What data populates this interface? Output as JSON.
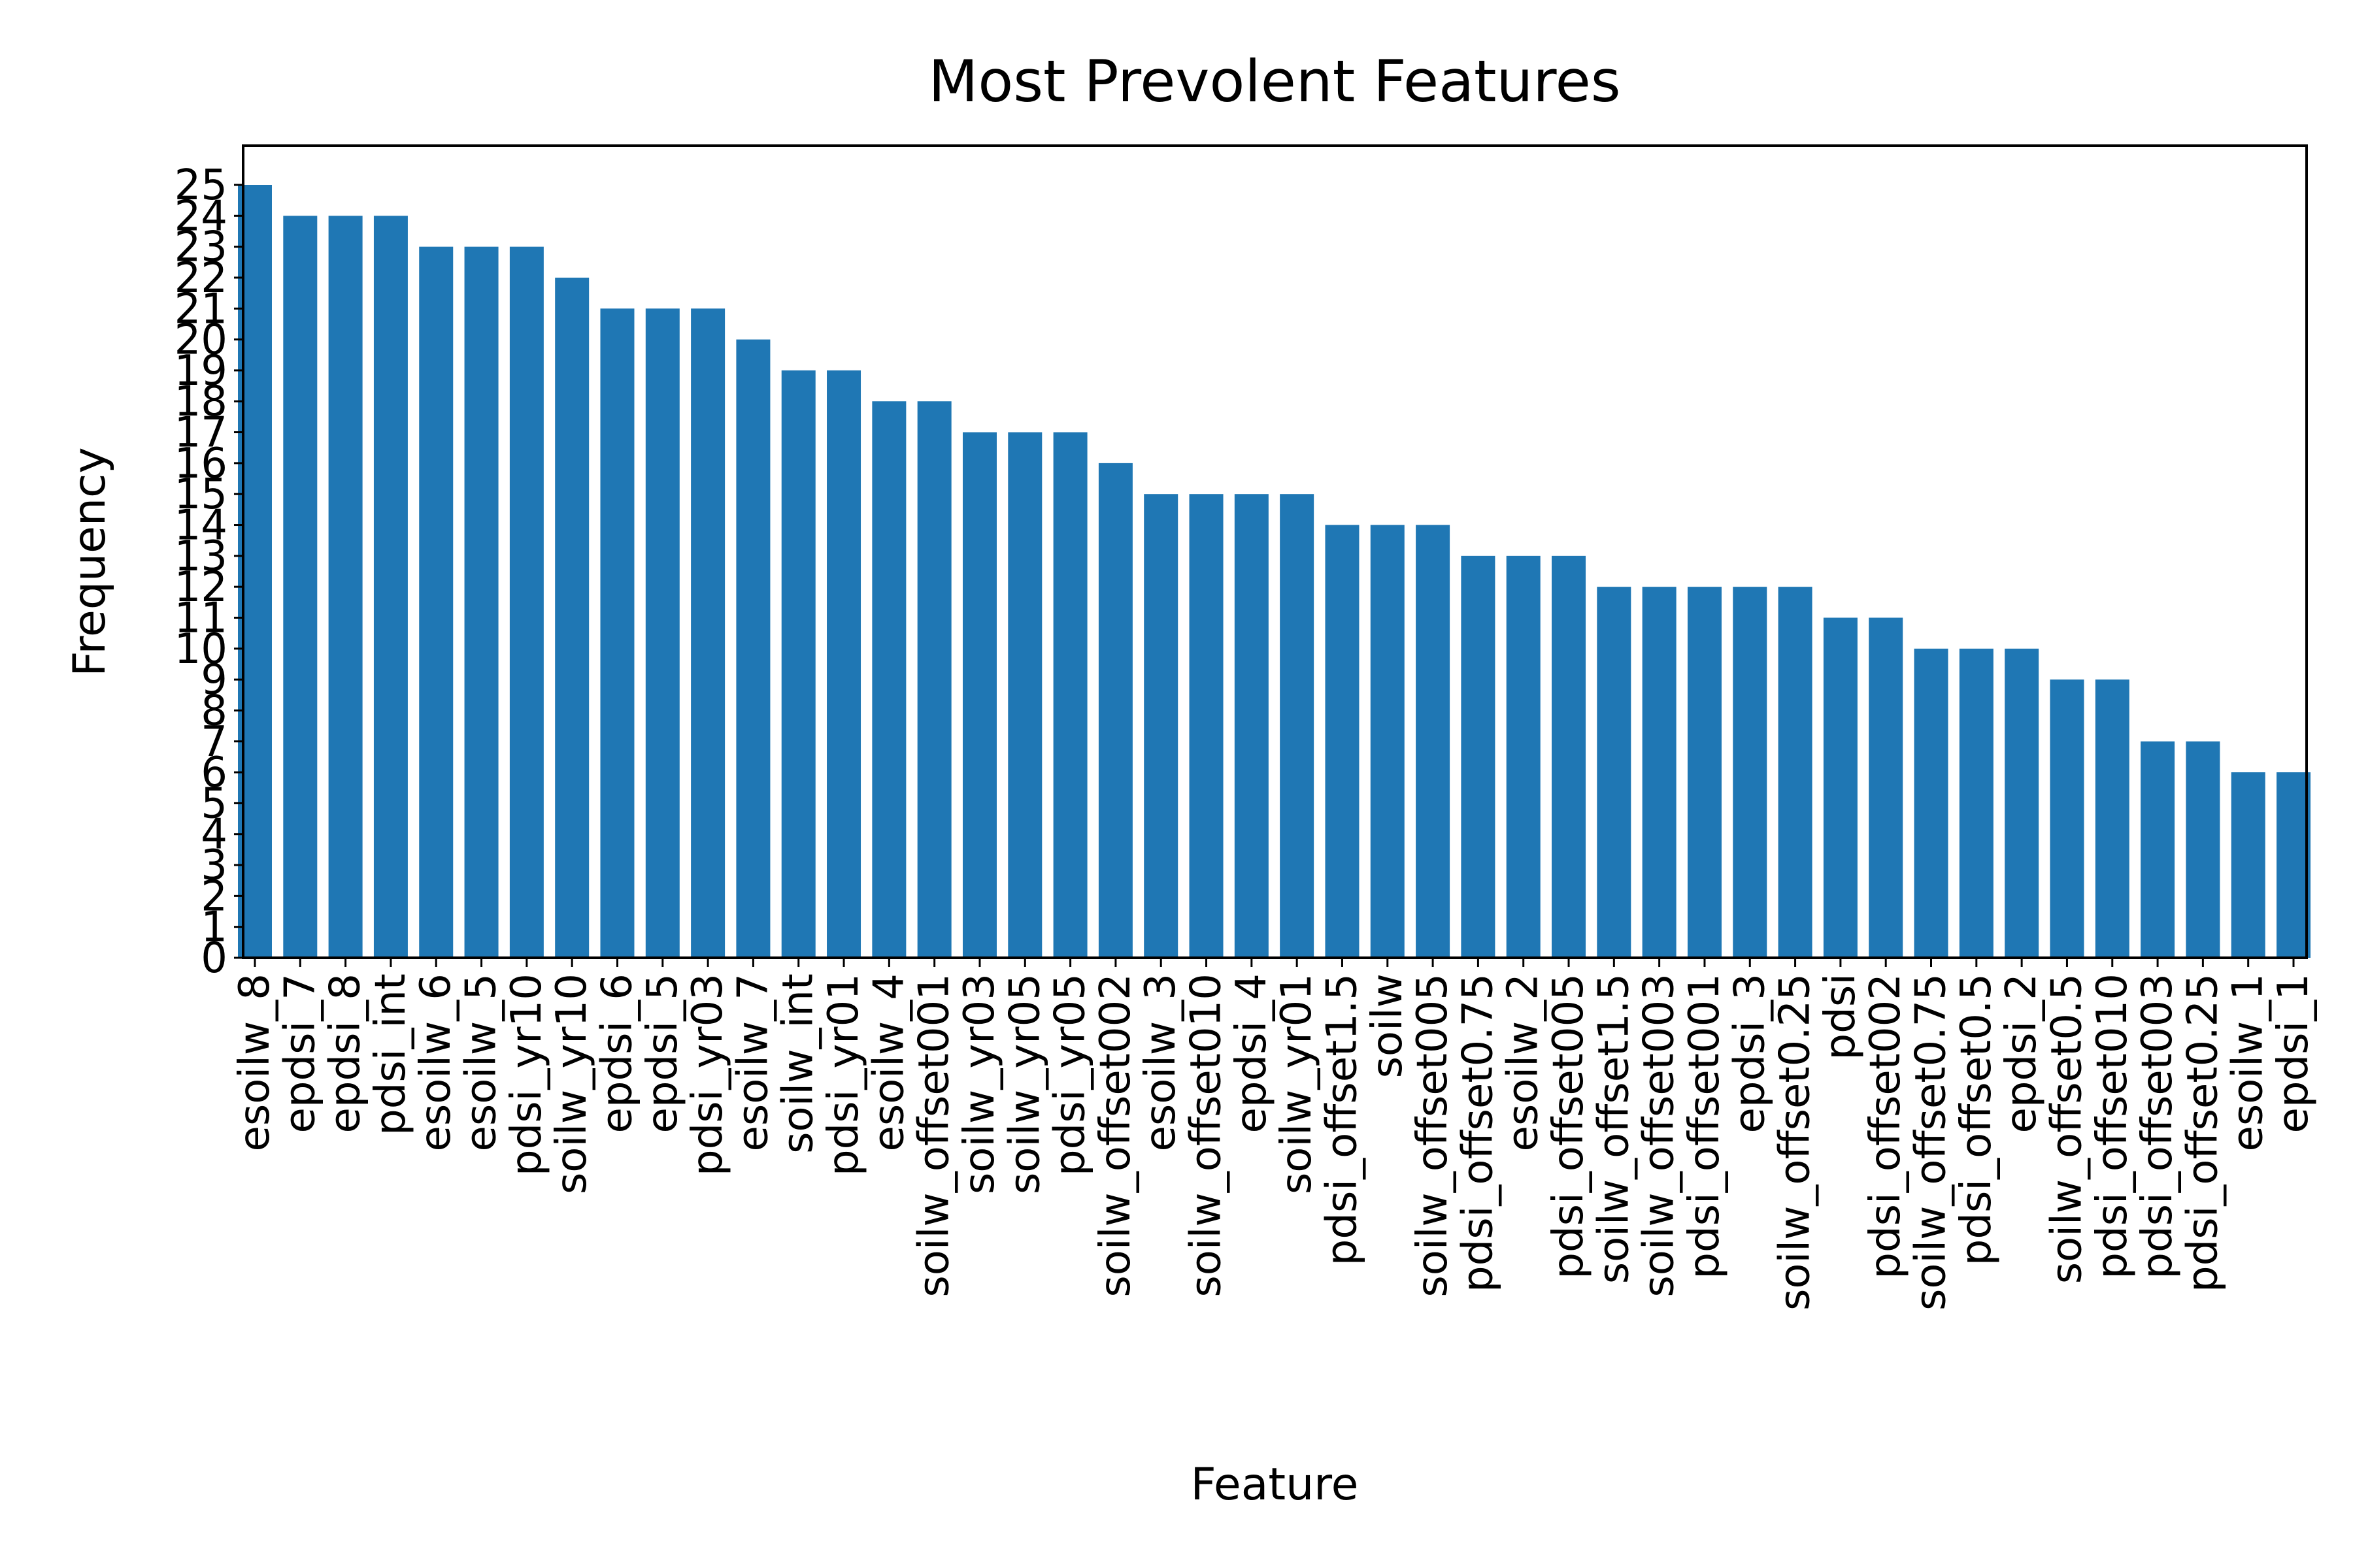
{
  "chart_data": {
    "type": "bar",
    "title": "Most Prevolent Features",
    "xlabel": "Feature",
    "ylabel": "Frequency",
    "ylim": [
      0,
      25
    ],
    "yticks": [
      0,
      1,
      2,
      3,
      4,
      5,
      6,
      7,
      8,
      9,
      10,
      11,
      12,
      13,
      14,
      15,
      16,
      17,
      18,
      19,
      20,
      21,
      22,
      23,
      24,
      25
    ],
    "grid": false,
    "bar_color": "#1f77b4",
    "categories": [
      "esoilw_8",
      "epdsi_7",
      "epdsi_8",
      "pdsi_int",
      "esoilw_6",
      "esoilw_5",
      "pdsi_yr10",
      "soilw_yr10",
      "epdsi_6",
      "epdsi_5",
      "pdsi_yr03",
      "esoilw_7",
      "soilw_int",
      "pdsi_yr01",
      "esoilw_4",
      "soilw_offset001",
      "soilw_yr03",
      "soilw_yr05",
      "pdsi_yr05",
      "soilw_offset002",
      "esoilw_3",
      "soilw_offset010",
      "epdsi_4",
      "soilw_yr01",
      "pdsi_offset1.5",
      "soilw",
      "soilw_offset005",
      "pdsi_offset0.75",
      "esoilw_2",
      "pdsi_offset005",
      "soilw_offset1.5",
      "soilw_offset003",
      "pdsi_offset001",
      "epdsi_3",
      "soilw_offset0.25",
      "pdsi",
      "pdsi_offset002",
      "soilw_offset0.75",
      "pdsi_offset0.5",
      "epdsi_2",
      "soilw_offset0.5",
      "pdsi_offset010",
      "pdsi_offset003",
      "pdsi_offset0.25",
      "esoilw_1",
      "epdsi_1"
    ],
    "values": [
      25,
      24,
      24,
      24,
      23,
      23,
      23,
      22,
      21,
      21,
      21,
      20,
      19,
      19,
      18,
      18,
      17,
      17,
      17,
      16,
      15,
      15,
      15,
      15,
      14,
      14,
      14,
      13,
      13,
      13,
      12,
      12,
      12,
      12,
      12,
      11,
      11,
      10,
      10,
      10,
      9,
      9,
      7,
      7,
      6,
      6
    ]
  }
}
